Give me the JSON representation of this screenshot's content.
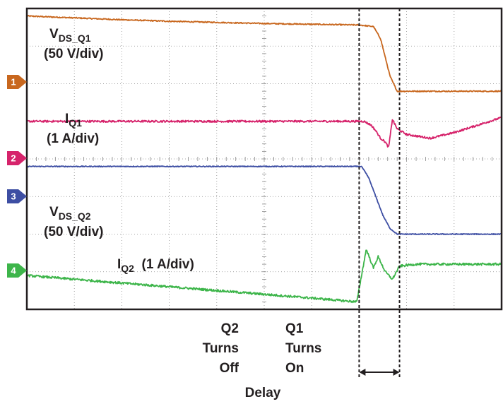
{
  "chart_data": {
    "type": "line",
    "grid": true,
    "title": "",
    "xlabel": "",
    "ylabel": "",
    "divisions": {
      "x": 10,
      "y": 8
    },
    "xlim": [
      0,
      10
    ],
    "ylim": [
      0,
      8
    ],
    "series": [
      {
        "name": "VDS_Q1 (50 V/div)",
        "channel": "1",
        "color": "#c8671e",
        "x": [
          0,
          1,
          2,
          3,
          4,
          5,
          6,
          7,
          7.3,
          7.45,
          7.55,
          7.65,
          7.8,
          8,
          9,
          10
        ],
        "y": [
          7.8,
          7.75,
          7.7,
          7.66,
          7.63,
          7.6,
          7.58,
          7.56,
          7.52,
          7.2,
          6.7,
          6.2,
          5.8,
          5.8,
          5.8,
          5.8
        ],
        "noise": 0.015
      },
      {
        "name": "IQ1 (1 A/div)",
        "channel": "2",
        "color": "#d6236b",
        "x": [
          0,
          2,
          4,
          6,
          7.1,
          7.25,
          7.35,
          7.45,
          7.55,
          7.62,
          7.7,
          7.8,
          8.0,
          8.5,
          9,
          9.5,
          10
        ],
        "y": [
          5.0,
          5.0,
          5.0,
          5.0,
          5.0,
          4.9,
          4.75,
          4.55,
          4.45,
          4.3,
          5.05,
          4.8,
          4.65,
          4.55,
          4.7,
          4.9,
          5.1
        ],
        "noise": 0.025
      },
      {
        "name": "VDS_Q2 (50 V/div)",
        "channel": "3",
        "color": "#3d4ea3",
        "x": [
          0,
          2,
          4,
          6,
          7.05,
          7.2,
          7.35,
          7.5,
          7.65,
          7.8,
          8,
          9,
          10
        ],
        "y": [
          3.8,
          3.8,
          3.8,
          3.8,
          3.8,
          3.5,
          3.0,
          2.5,
          2.15,
          2.0,
          2.0,
          2.0,
          2.0
        ],
        "noise": 0.012
      },
      {
        "name": "IQ2 (1 A/div)",
        "channel": "4",
        "color": "#3db54a",
        "x": [
          0,
          1,
          2,
          3,
          4,
          5,
          6,
          6.95,
          7.05,
          7.15,
          7.3,
          7.4,
          7.55,
          7.7,
          7.85,
          8.2,
          9,
          10
        ],
        "y": [
          0.9,
          0.8,
          0.7,
          0.6,
          0.5,
          0.4,
          0.3,
          0.2,
          0.9,
          1.6,
          1.1,
          1.4,
          1.0,
          0.8,
          1.15,
          1.2,
          1.2,
          1.2
        ],
        "noise": 0.03
      }
    ],
    "markers": [
      {
        "id": "q2-off",
        "x": 7.0
      },
      {
        "id": "q1-on",
        "x": 7.85
      }
    ]
  },
  "labels": {
    "vds_q1_main": "V",
    "vds_q1_sub": "DS_Q1",
    "vds_q1_scale": "(50 V/div)",
    "iq1_main": "I",
    "iq1_sub": "Q1",
    "iq1_scale": "(1 A/div)",
    "vds_q2_main": "V",
    "vds_q2_sub": "DS_Q2",
    "vds_q2_scale": "(50 V/div)",
    "iq2_main": "I",
    "iq2_sub": "Q2",
    "iq2_scale": "(1 A/div)",
    "q2_line1": "Q2",
    "q2_line2": "Turns",
    "q2_line3": "Off",
    "q1_line1": "Q1",
    "q1_line2": "Turns",
    "q1_line3": "On",
    "delay": "Delay",
    "ch1": "1",
    "ch2": "2",
    "ch3": "3",
    "ch4": "4"
  },
  "colors": {
    "ch1": "#c8671e",
    "ch2": "#d6236b",
    "ch3": "#3d4ea3",
    "ch4": "#3db54a",
    "frame": "#231f20",
    "grid": "#8a8a8a"
  }
}
